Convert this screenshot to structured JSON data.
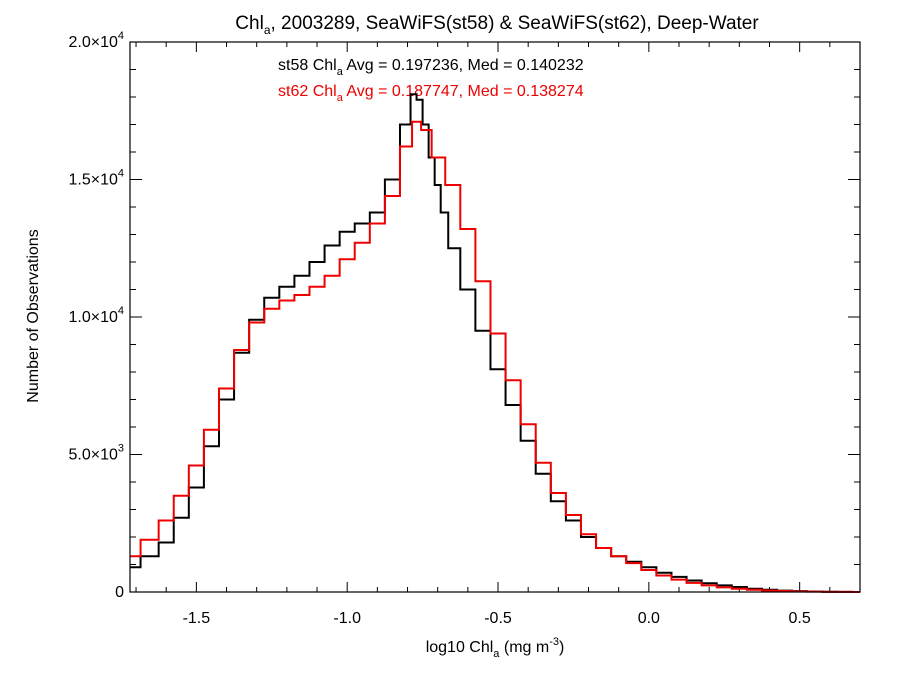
{
  "chart_data": {
    "type": "line",
    "step": true,
    "title": {
      "pre": "Chl",
      "sub": "a",
      "post": ", 2003289, SeaWiFS(st58) & SeaWiFS(st62), Deep-Water"
    },
    "xlabel": {
      "pre": "log10 Chl",
      "sub": "a",
      "mid": " (mg m",
      "sup": "-3",
      "post": ")"
    },
    "ylabel": "Number of Observations",
    "xlim": [
      -1.72,
      0.7
    ],
    "ylim": [
      0,
      20000
    ],
    "xticks": [
      -1.5,
      -1.0,
      -0.5,
      0.0,
      0.5
    ],
    "xtick_labels": [
      "-1.5",
      "-1.0",
      "-0.5",
      "0.0",
      "0.5"
    ],
    "yticks": [
      {
        "value": 0,
        "mant": "0",
        "exp": ""
      },
      {
        "value": 5000,
        "mant": "5.0×10",
        "exp": "3"
      },
      {
        "value": 10000,
        "mant": "1.0×10",
        "exp": "4"
      },
      {
        "value": 15000,
        "mant": "1.5×10",
        "exp": "4"
      },
      {
        "value": 20000,
        "mant": "2.0×10",
        "exp": "4"
      }
    ],
    "grid": false,
    "series": [
      {
        "name": "st58",
        "color": "#000000",
        "label": {
          "pre": "st58 Chl",
          "sub": "a",
          "post": " Avg = 0.197236, Med = 0.140232"
        },
        "points": [
          [
            -1.72,
            900
          ],
          [
            -1.65,
            1300
          ],
          [
            -1.6,
            1800
          ],
          [
            -1.55,
            2700
          ],
          [
            -1.5,
            3800
          ],
          [
            -1.45,
            5300
          ],
          [
            -1.4,
            7000
          ],
          [
            -1.35,
            8700
          ],
          [
            -1.3,
            9900
          ],
          [
            -1.25,
            10700
          ],
          [
            -1.2,
            11100
          ],
          [
            -1.15,
            11500
          ],
          [
            -1.1,
            12000
          ],
          [
            -1.05,
            12600
          ],
          [
            -1.0,
            13100
          ],
          [
            -0.95,
            13400
          ],
          [
            -0.9,
            13800
          ],
          [
            -0.85,
            15000
          ],
          [
            -0.8,
            17000
          ],
          [
            -0.78,
            18100
          ],
          [
            -0.76,
            17900
          ],
          [
            -0.74,
            17000
          ],
          [
            -0.72,
            15800
          ],
          [
            -0.7,
            14800
          ],
          [
            -0.68,
            13800
          ],
          [
            -0.65,
            12500
          ],
          [
            -0.6,
            11000
          ],
          [
            -0.55,
            9500
          ],
          [
            -0.5,
            8100
          ],
          [
            -0.45,
            6800
          ],
          [
            -0.4,
            5500
          ],
          [
            -0.35,
            4300
          ],
          [
            -0.3,
            3300
          ],
          [
            -0.25,
            2600
          ],
          [
            -0.2,
            2000
          ],
          [
            -0.15,
            1600
          ],
          [
            -0.1,
            1300
          ],
          [
            -0.05,
            1100
          ],
          [
            0.0,
            900
          ],
          [
            0.05,
            700
          ],
          [
            0.1,
            550
          ],
          [
            0.15,
            420
          ],
          [
            0.2,
            320
          ],
          [
            0.25,
            240
          ],
          [
            0.3,
            180
          ],
          [
            0.35,
            120
          ],
          [
            0.4,
            80
          ],
          [
            0.45,
            50
          ],
          [
            0.5,
            30
          ],
          [
            0.55,
            20
          ],
          [
            0.6,
            10
          ],
          [
            0.65,
            5
          ],
          [
            0.7,
            2
          ]
        ]
      },
      {
        "name": "st62",
        "color": "#ee0000",
        "label": {
          "pre": "st62 Chl",
          "sub": "a",
          "post": " Avg = 0.187747, Med = 0.138274"
        },
        "points": [
          [
            -1.72,
            1300
          ],
          [
            -1.65,
            1900
          ],
          [
            -1.6,
            2600
          ],
          [
            -1.55,
            3500
          ],
          [
            -1.5,
            4600
          ],
          [
            -1.45,
            5900
          ],
          [
            -1.4,
            7400
          ],
          [
            -1.35,
            8800
          ],
          [
            -1.3,
            9800
          ],
          [
            -1.25,
            10300
          ],
          [
            -1.2,
            10600
          ],
          [
            -1.15,
            10800
          ],
          [
            -1.1,
            11100
          ],
          [
            -1.05,
            11500
          ],
          [
            -1.0,
            12100
          ],
          [
            -0.95,
            12700
          ],
          [
            -0.9,
            13400
          ],
          [
            -0.85,
            14400
          ],
          [
            -0.8,
            16200
          ],
          [
            -0.77,
            17100
          ],
          [
            -0.74,
            16800
          ],
          [
            -0.7,
            15800
          ],
          [
            -0.65,
            14800
          ],
          [
            -0.6,
            13200
          ],
          [
            -0.55,
            11300
          ],
          [
            -0.5,
            9400
          ],
          [
            -0.45,
            7700
          ],
          [
            -0.4,
            6100
          ],
          [
            -0.35,
            4700
          ],
          [
            -0.3,
            3600
          ],
          [
            -0.25,
            2800
          ],
          [
            -0.2,
            2100
          ],
          [
            -0.15,
            1600
          ],
          [
            -0.1,
            1300
          ],
          [
            -0.05,
            1050
          ],
          [
            0.0,
            800
          ],
          [
            0.05,
            600
          ],
          [
            0.1,
            450
          ],
          [
            0.15,
            330
          ],
          [
            0.2,
            240
          ],
          [
            0.25,
            170
          ],
          [
            0.3,
            120
          ],
          [
            0.35,
            80
          ],
          [
            0.4,
            55
          ],
          [
            0.45,
            35
          ],
          [
            0.5,
            20
          ],
          [
            0.55,
            12
          ],
          [
            0.6,
            6
          ],
          [
            0.65,
            3
          ],
          [
            0.7,
            1
          ]
        ]
      }
    ]
  }
}
